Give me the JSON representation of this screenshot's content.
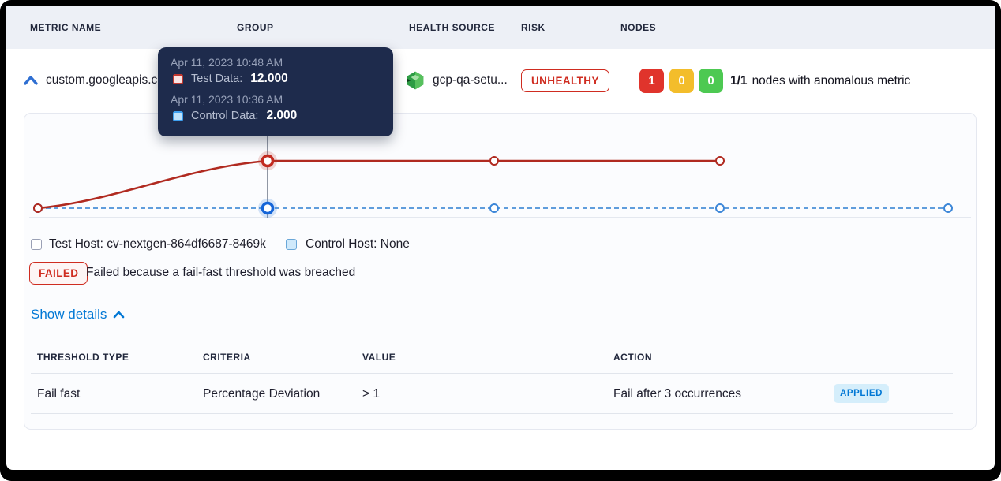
{
  "table": {
    "columns": [
      "METRIC NAME",
      "GROUP",
      "HEALTH SOURCE",
      "RISK",
      "NODES"
    ]
  },
  "metric_row": {
    "metric_name": "custom.googleapis.c",
    "health_source_name": "gcp-qa-setu...",
    "risk_label": "UNHEALTHY",
    "node_counts": [
      {
        "severity": "unhealthy",
        "count": "1",
        "color": "#e0342c"
      },
      {
        "severity": "warning",
        "count": "0",
        "color": "#f3bd2b"
      },
      {
        "severity": "healthy",
        "count": "0",
        "color": "#4dc952"
      }
    ],
    "nodes_summary_ratio": "1/1",
    "nodes_summary_text": "nodes with anomalous metric"
  },
  "tooltip": {
    "entries": [
      {
        "timestamp": "Apr 11, 2023 10:48 AM",
        "series": "Test Data:",
        "value": "12.000",
        "marker_color": "#c0362e"
      },
      {
        "timestamp": "Apr 11, 2023 10:36 AM",
        "series": "Control Data:",
        "value": "2.000",
        "marker_color": "#3ea0f0"
      }
    ]
  },
  "chart_data": {
    "type": "line",
    "title": "",
    "x_unit": "time",
    "hovered_point_index": 1,
    "series": [
      {
        "name": "Test Data",
        "color": "#b02a20",
        "line_style": "solid",
        "values": [
          2,
          12,
          12,
          12
        ]
      },
      {
        "name": "Control Data",
        "color": "#5f9ddc",
        "line_style": "dashed",
        "values": [
          2,
          2,
          2,
          2,
          2
        ]
      }
    ],
    "hovered_values": {
      "test_data": "12.000",
      "control_data": "2.000"
    },
    "ylim": [
      0,
      14
    ],
    "grid": false,
    "legend_position": "none"
  },
  "hosts": {
    "test_host": {
      "label": "Test Host: cv-nextgen-864df6687-8469k",
      "checked": false
    },
    "control_host": {
      "label": "Control Host: None",
      "checked": false
    }
  },
  "verification_status": {
    "badge": "FAILED",
    "message": "Failed because a fail-fast threshold was breached"
  },
  "details": {
    "toggle_label": "Show details",
    "table": {
      "columns": [
        "THRESHOLD TYPE",
        "CRITERIA",
        "VALUE",
        "ACTION"
      ],
      "rows": [
        {
          "threshold_type": "Fail fast",
          "criteria": "Percentage Deviation",
          "value": "> 1",
          "action": "Fail after 3 occurrences",
          "status_badge": "APPLIED"
        }
      ]
    }
  },
  "colors": {
    "accent_blue": "#0278d5",
    "risk_red": "#cf2c20",
    "node_red": "#e0342c",
    "node_amber": "#f3bd2b",
    "node_green": "#4dc952",
    "tooltip_bg": "#1e2b4c",
    "test_line": "#b02a20",
    "control_line": "#5f9ddc"
  }
}
